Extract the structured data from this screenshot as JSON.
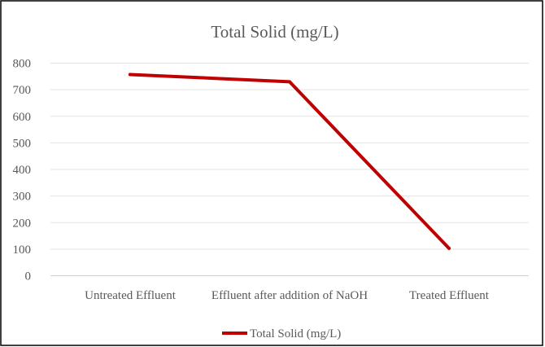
{
  "chart_data": {
    "type": "line",
    "title": "Total Solid (mg/L)",
    "categories": [
      "Untreated Effluent",
      "Effluent after addition of  NaOH",
      "Treated Effluent"
    ],
    "series": [
      {
        "name": "Total Solid (mg/L)",
        "values": [
          757,
          730,
          103
        ],
        "color": "#c00000"
      }
    ],
    "ylim": [
      0,
      800
    ],
    "yticks": [
      "0",
      "100",
      "200",
      "300",
      "400",
      "500",
      "600",
      "700",
      "800"
    ],
    "grid": true,
    "legend": "bottom"
  }
}
